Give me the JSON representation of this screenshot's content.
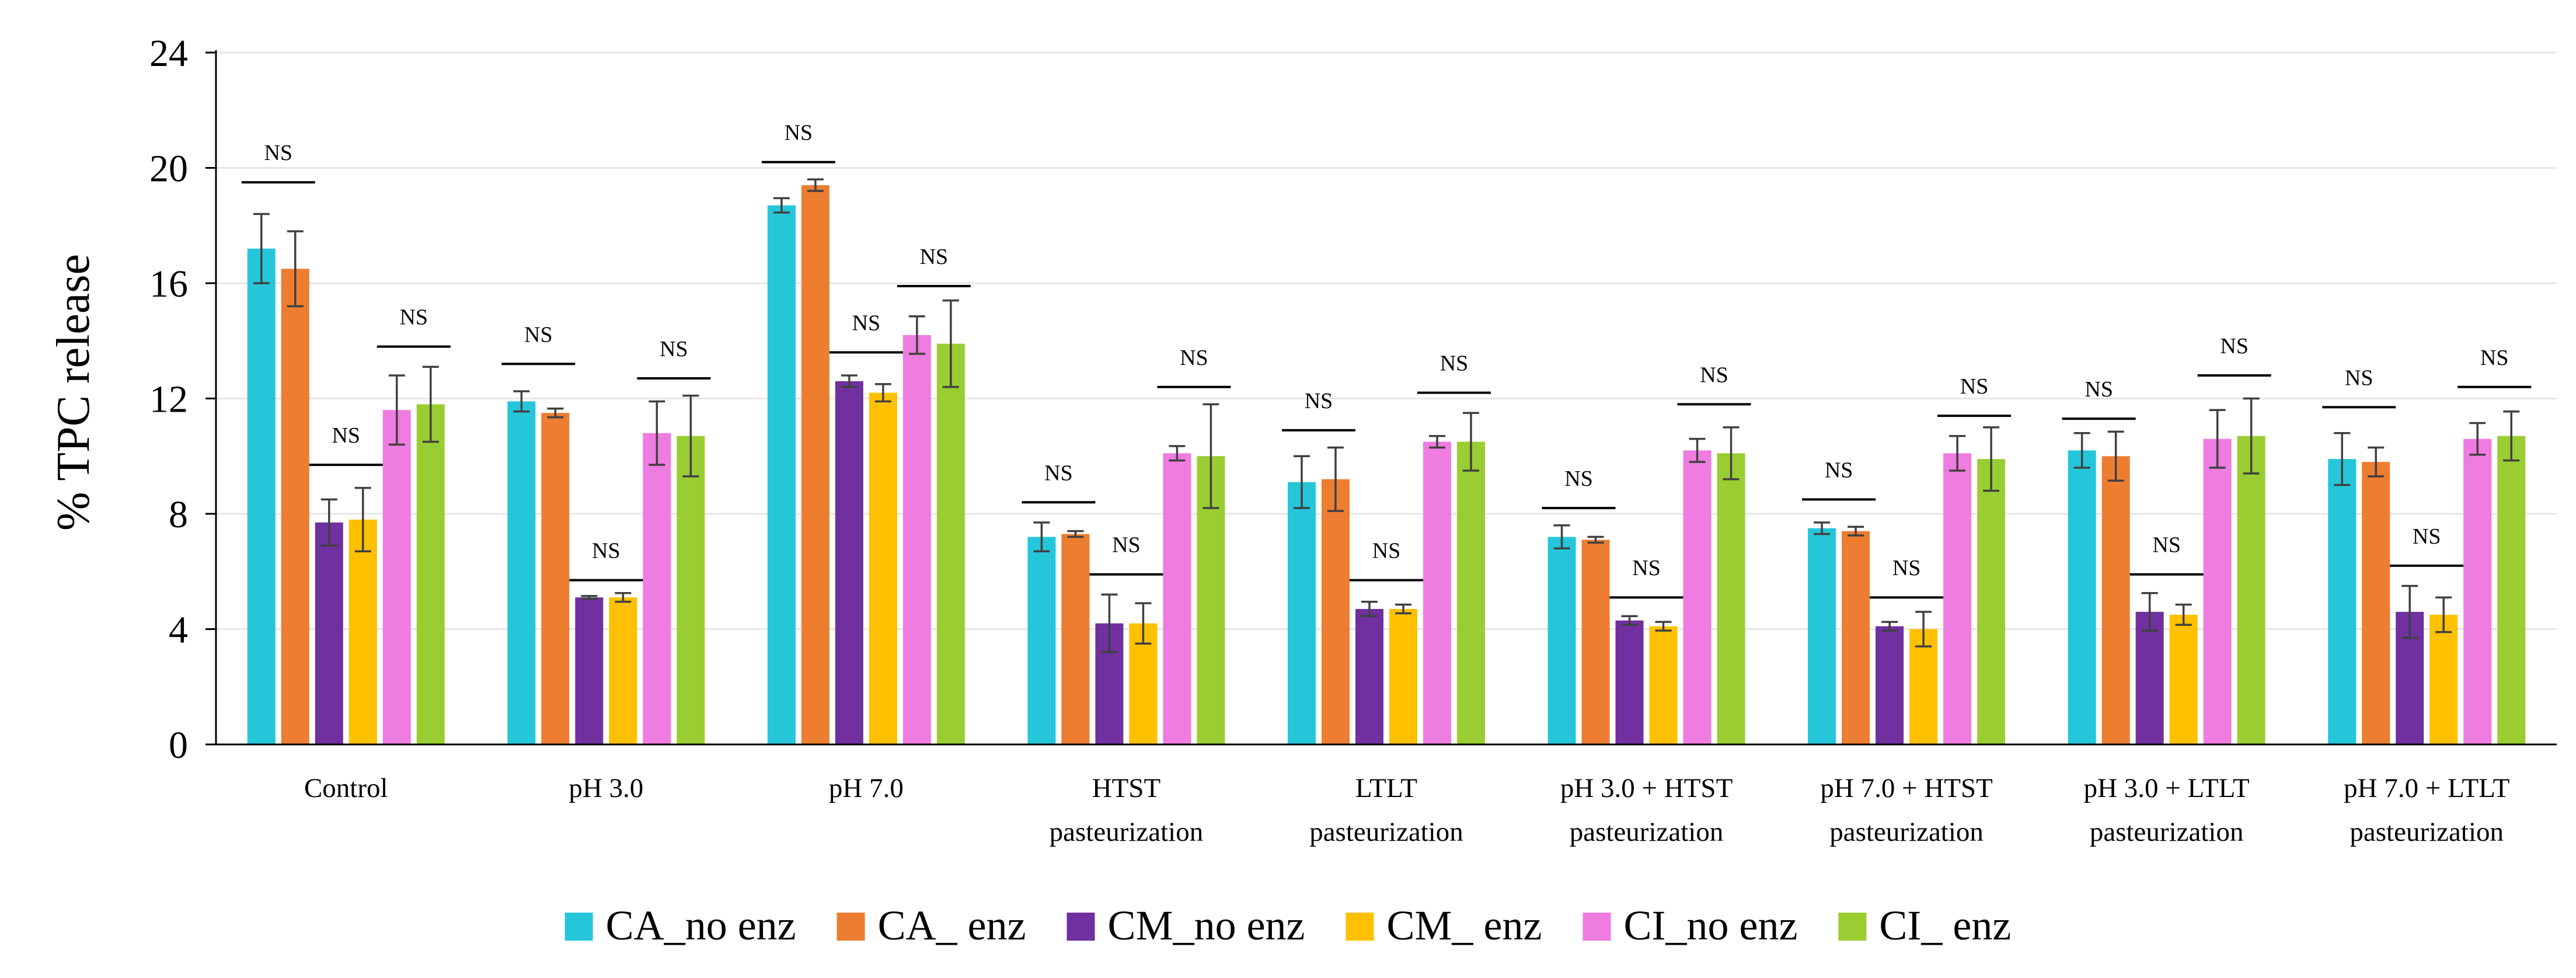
{
  "chart_data": {
    "type": "bar",
    "ylabel": "% TPC release",
    "ylim": [
      0,
      24
    ],
    "yticks": [
      0,
      4,
      8,
      12,
      16,
      20,
      24
    ],
    "grid": true,
    "legend_position": "bottom",
    "categories": [
      [
        "Control"
      ],
      [
        "pH 3.0"
      ],
      [
        "pH 7.0"
      ],
      [
        "HTST",
        "pasteurization"
      ],
      [
        "LTLT",
        "pasteurization"
      ],
      [
        "pH 3.0 + HTST",
        "pasteurization"
      ],
      [
        "pH 7.0 + HTST",
        "pasteurization"
      ],
      [
        "pH 3.0 + LTLT",
        "pasteurization"
      ],
      [
        "pH 7.0 + LTLT",
        "pasteurization"
      ]
    ],
    "series": [
      {
        "name": "CA_no enz",
        "color": "#26C6DA",
        "values": [
          17.2,
          11.9,
          18.7,
          7.2,
          9.1,
          7.2,
          7.5,
          10.2,
          9.9
        ],
        "errors": [
          1.2,
          0.35,
          0.25,
          0.5,
          0.9,
          0.4,
          0.2,
          0.6,
          0.9
        ]
      },
      {
        "name": "CA_ enz",
        "color": "#ED7D31",
        "values": [
          16.5,
          11.5,
          19.4,
          7.3,
          9.2,
          7.1,
          7.4,
          10.0,
          9.8
        ],
        "errors": [
          1.3,
          0.15,
          0.2,
          0.1,
          1.1,
          0.1,
          0.15,
          0.85,
          0.5
        ]
      },
      {
        "name": "CM_no enz",
        "color": "#7030A0",
        "values": [
          7.7,
          5.1,
          12.6,
          4.2,
          4.7,
          4.3,
          4.1,
          4.6,
          4.6
        ],
        "errors": [
          0.8,
          0.05,
          0.2,
          1.0,
          0.25,
          0.15,
          0.15,
          0.65,
          0.9
        ]
      },
      {
        "name": "CM_ enz",
        "color": "#FFC000",
        "values": [
          7.8,
          5.1,
          12.2,
          4.2,
          4.7,
          4.1,
          4.0,
          4.5,
          4.5
        ],
        "errors": [
          1.1,
          0.15,
          0.3,
          0.7,
          0.15,
          0.15,
          0.6,
          0.35,
          0.6
        ]
      },
      {
        "name": "CI_no enz",
        "color": "#EF7CE0",
        "values": [
          11.6,
          10.8,
          14.2,
          10.1,
          10.5,
          10.2,
          10.1,
          10.6,
          10.6
        ],
        "errors": [
          1.2,
          1.1,
          0.65,
          0.25,
          0.2,
          0.4,
          0.6,
          1.0,
          0.55
        ]
      },
      {
        "name": "CI_ enz",
        "color": "#9ACD32",
        "values": [
          11.8,
          10.7,
          13.9,
          10.0,
          10.5,
          10.1,
          9.9,
          10.7,
          10.7
        ],
        "errors": [
          1.3,
          1.4,
          1.5,
          1.8,
          1.0,
          0.9,
          1.1,
          1.3,
          0.85
        ]
      }
    ],
    "annotations": {
      "text": "NS",
      "groups": [
        {
          "series": [
            0,
            1
          ],
          "y": [
            19.5,
            13.2,
            20.2,
            8.4,
            10.9,
            8.2,
            8.5,
            11.3,
            11.7
          ]
        },
        {
          "series": [
            2,
            3
          ],
          "y": [
            9.7,
            5.7,
            13.6,
            5.9,
            5.7,
            5.1,
            5.1,
            5.9,
            6.2
          ]
        },
        {
          "series": [
            4,
            5
          ],
          "y": [
            13.8,
            12.7,
            15.9,
            12.4,
            12.2,
            11.8,
            11.4,
            12.8,
            12.4
          ]
        }
      ]
    }
  }
}
